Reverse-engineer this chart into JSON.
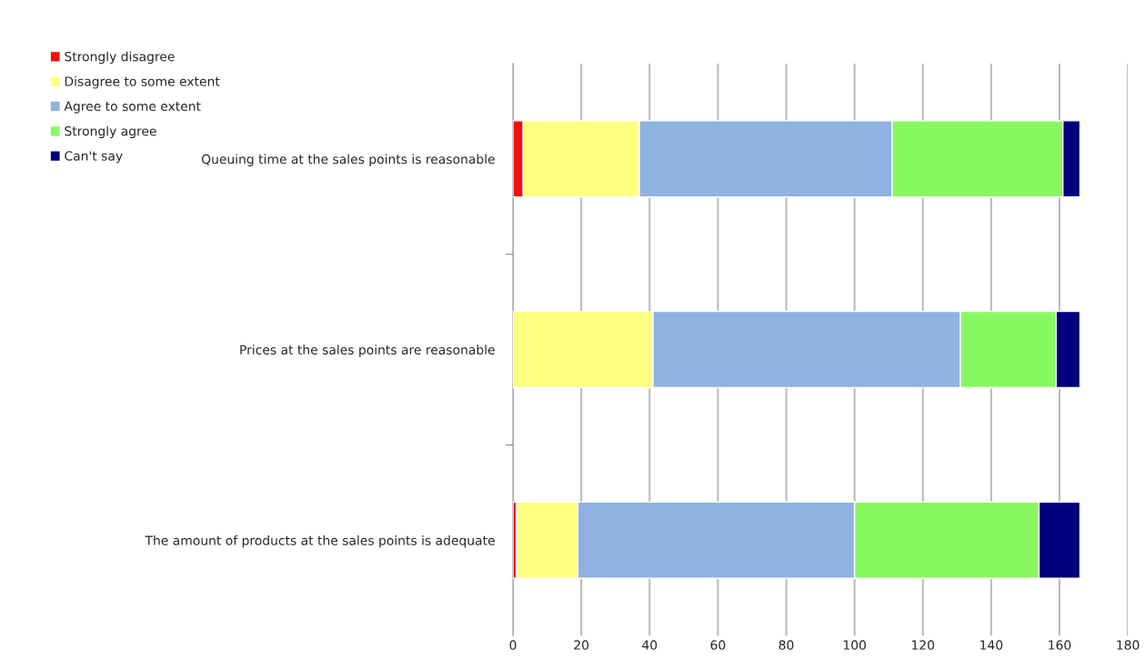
{
  "chart_data": {
    "type": "bar",
    "orientation": "horizontal",
    "stacked": true,
    "categories": [
      "Queuing time at the sales points is reasonable",
      "Prices at the sales points are reasonable",
      "The amount of products at the sales points is adequate"
    ],
    "series": [
      {
        "name": "Strongly disagree",
        "color": "#f01010",
        "values": [
          3,
          0,
          1
        ]
      },
      {
        "name": "Disagree to some extent",
        "color": "#ffff80",
        "values": [
          34,
          41,
          18
        ]
      },
      {
        "name": "Agree to some extent",
        "color": "#8fb2e0",
        "values": [
          74,
          90,
          81
        ]
      },
      {
        "name": "Strongly agree",
        "color": "#88f860",
        "values": [
          50,
          28,
          54
        ]
      },
      {
        "name": "Can't say",
        "color": "#000080",
        "values": [
          5,
          7,
          12
        ]
      }
    ],
    "xlim": [
      0,
      180
    ],
    "xticks": [
      0,
      20,
      40,
      60,
      80,
      100,
      120,
      140,
      160,
      180
    ],
    "grid": "x",
    "legend": "top left"
  }
}
